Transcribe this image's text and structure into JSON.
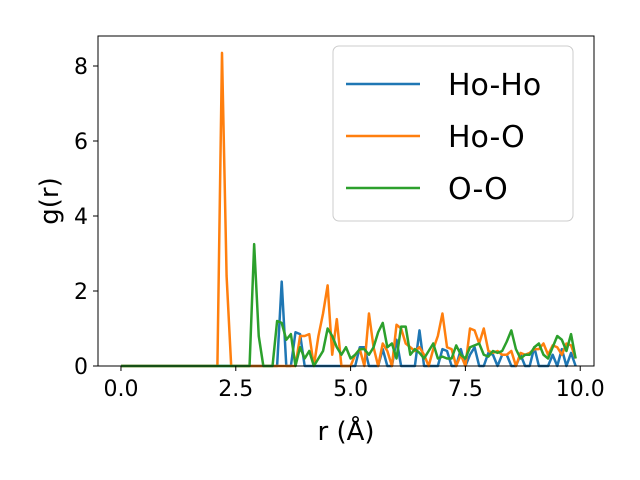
{
  "chart_data": {
    "type": "line",
    "title": "",
    "xlabel": "r (Å)",
    "ylabel": "g(r)",
    "xlim": [
      -0.5,
      10.3
    ],
    "ylim": [
      0,
      8.8
    ],
    "xticks": [
      0.0,
      2.5,
      5.0,
      7.5,
      10.0
    ],
    "xtick_labels": [
      "0.0",
      "2.5",
      "5.0",
      "7.5",
      "10.0"
    ],
    "yticks": [
      0,
      2,
      4,
      6,
      8
    ],
    "ytick_labels": [
      "0",
      "2",
      "4",
      "6",
      "8"
    ],
    "grid": false,
    "legend_position": "top-right",
    "series": [
      {
        "name": "Ho-Ho",
        "color": "#1f77b4",
        "x": [
          0,
          3.4,
          3.5,
          3.6,
          3.7,
          3.8,
          3.9,
          4.0,
          4.1,
          4.2,
          4.3,
          4.4,
          4.5,
          4.6,
          4.7,
          4.8,
          4.9,
          5.0,
          5.1,
          5.2,
          5.3,
          5.4,
          5.5,
          5.6,
          5.7,
          5.8,
          5.9,
          6.0,
          6.1,
          6.2,
          6.3,
          6.4,
          6.5,
          6.6,
          6.7,
          6.8,
          6.9,
          7.0,
          7.1,
          7.2,
          7.3,
          7.4,
          7.5,
          7.6,
          7.7,
          7.8,
          7.9,
          8.0,
          8.1,
          8.2,
          8.3,
          8.4,
          8.5,
          8.6,
          8.7,
          8.8,
          8.9,
          9.0,
          9.1,
          9.2,
          9.3,
          9.4,
          9.5,
          9.6,
          9.7,
          9.8,
          9.9
        ],
        "values": [
          0,
          0,
          2.25,
          0,
          0,
          0.9,
          0.85,
          0,
          0,
          0,
          0,
          0,
          0,
          0,
          0,
          0,
          0,
          0,
          0,
          0.5,
          0.5,
          0,
          0,
          0,
          0.45,
          0,
          0,
          0.7,
          0,
          0,
          0,
          0,
          0.95,
          0,
          0,
          0,
          0,
          0.45,
          0.4,
          0,
          0,
          0.45,
          0,
          0.3,
          0.5,
          0,
          0,
          0.35,
          0.3,
          0,
          0.3,
          0.3,
          0,
          0,
          0.3,
          0,
          0,
          0.5,
          0,
          0,
          0,
          0.3,
          0,
          0.45,
          0,
          0.35,
          0
        ]
      },
      {
        "name": "Ho-O",
        "color": "#ff7f0e",
        "x": [
          0,
          2.1,
          2.2,
          2.3,
          2.4,
          3.8,
          3.9,
          4.0,
          4.1,
          4.2,
          4.3,
          4.4,
          4.5,
          4.6,
          4.7,
          4.8,
          4.9,
          5.0,
          5.1,
          5.2,
          5.3,
          5.4,
          5.5,
          5.6,
          5.7,
          5.8,
          5.9,
          6.0,
          6.1,
          6.2,
          6.3,
          6.4,
          6.5,
          6.6,
          6.7,
          6.8,
          6.9,
          7.0,
          7.1,
          7.2,
          7.3,
          7.4,
          7.5,
          7.6,
          7.7,
          7.8,
          7.9,
          8.0,
          8.1,
          8.2,
          8.3,
          8.4,
          8.5,
          8.6,
          8.7,
          8.8,
          8.9,
          9.0,
          9.1,
          9.2,
          9.3,
          9.4,
          9.5,
          9.6,
          9.7,
          9.8,
          9.9
        ],
        "values": [
          0,
          0,
          8.35,
          2.4,
          0,
          0,
          0.8,
          0.8,
          0.85,
          0,
          0.8,
          1.4,
          2.15,
          0.3,
          1.25,
          0,
          0,
          0,
          0.3,
          0.45,
          0,
          1.4,
          0.5,
          0,
          0.6,
          0.4,
          0,
          1.1,
          1.0,
          0.6,
          0.5,
          0.4,
          0.5,
          0.3,
          0,
          0.45,
          0.8,
          1.4,
          0.5,
          0.45,
          0,
          0.3,
          0,
          1.0,
          0.95,
          0.6,
          1.0,
          0.4,
          0.35,
          0.4,
          0.3,
          0.3,
          0.4,
          0,
          0.35,
          0.3,
          0.35,
          0.45,
          0.45,
          0.6,
          0.3,
          0.55,
          0.5,
          0.3,
          0.6,
          0.55,
          0.2
        ]
      },
      {
        "name": "O-O",
        "color": "#2ca02c",
        "x": [
          0,
          2.8,
          2.9,
          3.0,
          3.1,
          3.2,
          3.3,
          3.4,
          3.5,
          3.6,
          3.7,
          3.8,
          3.9,
          4.0,
          4.1,
          4.2,
          4.3,
          4.4,
          4.5,
          4.6,
          4.7,
          4.8,
          4.9,
          5.0,
          5.1,
          5.2,
          5.3,
          5.4,
          5.5,
          5.6,
          5.7,
          5.8,
          5.9,
          6.0,
          6.1,
          6.2,
          6.3,
          6.4,
          6.5,
          6.6,
          6.7,
          6.8,
          6.9,
          7.0,
          7.1,
          7.2,
          7.3,
          7.4,
          7.5,
          7.6,
          7.7,
          7.8,
          7.9,
          8.0,
          8.1,
          8.2,
          8.3,
          8.4,
          8.5,
          8.6,
          8.7,
          8.8,
          8.9,
          9.0,
          9.1,
          9.2,
          9.3,
          9.4,
          9.5,
          9.6,
          9.7,
          9.8,
          9.9
        ],
        "values": [
          0,
          0,
          3.25,
          0.8,
          0,
          0,
          0,
          1.2,
          1.15,
          0.7,
          0.85,
          0,
          0.5,
          0.2,
          0.4,
          0,
          0.2,
          0.4,
          1.0,
          0.8,
          0.5,
          0.3,
          0.5,
          0.2,
          0.3,
          0.45,
          0.45,
          0.3,
          0.5,
          0.9,
          1.15,
          0.5,
          0.6,
          0.2,
          1.05,
          1.05,
          0.3,
          0.45,
          0.35,
          0.2,
          0.4,
          0.6,
          0.2,
          0.25,
          0.2,
          0.2,
          0.55,
          0.3,
          0.2,
          0.5,
          0.55,
          0.6,
          0.3,
          0.25,
          0.4,
          0.35,
          0.4,
          0.65,
          0.95,
          0.45,
          0.2,
          0.3,
          0.3,
          0.5,
          0.6,
          0.3,
          0.2,
          0.5,
          0.8,
          0.7,
          0.4,
          0.85,
          0.2
        ]
      }
    ]
  }
}
